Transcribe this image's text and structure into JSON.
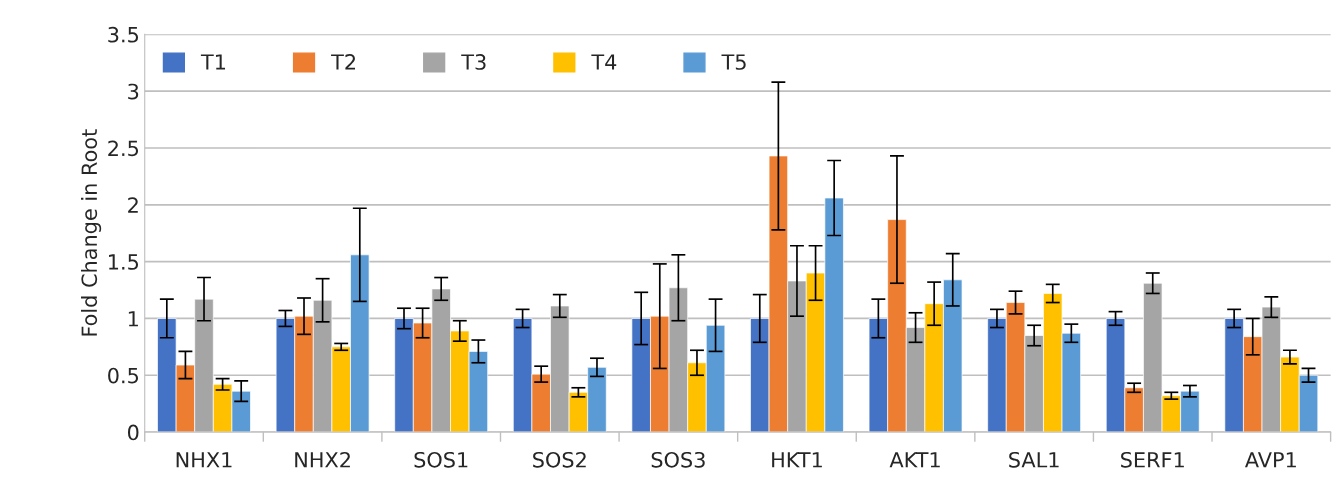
{
  "chart_data": {
    "type": "bar",
    "ylabel": "Fold Change in Root",
    "categories": [
      "NHX1",
      "NHX2",
      "SOS1",
      "SOS2",
      "SOS3",
      "HKT1",
      "AKT1",
      "SAL1",
      "SERF1",
      "AVP1"
    ],
    "series": [
      {
        "name": "T1",
        "color": "#4472c4",
        "values": [
          1.0,
          1.0,
          1.0,
          1.0,
          1.0,
          1.0,
          1.0,
          1.0,
          1.0,
          1.0
        ],
        "errors": [
          0.17,
          0.07,
          0.09,
          0.08,
          0.23,
          0.21,
          0.17,
          0.08,
          0.06,
          0.08
        ]
      },
      {
        "name": "T2",
        "color": "#ed7d31",
        "values": [
          0.59,
          1.02,
          0.96,
          0.51,
          1.02,
          2.43,
          1.87,
          1.14,
          0.39,
          0.84
        ],
        "errors": [
          0.12,
          0.16,
          0.13,
          0.07,
          0.46,
          0.65,
          0.56,
          0.1,
          0.04,
          0.16
        ]
      },
      {
        "name": "T3",
        "color": "#a5a5a5",
        "values": [
          1.17,
          1.16,
          1.26,
          1.11,
          1.27,
          1.33,
          0.92,
          0.85,
          1.31,
          1.1
        ],
        "errors": [
          0.19,
          0.19,
          0.1,
          0.1,
          0.29,
          0.31,
          0.13,
          0.09,
          0.09,
          0.09
        ]
      },
      {
        "name": "T4",
        "color": "#ffc000",
        "values": [
          0.42,
          0.75,
          0.89,
          0.35,
          0.61,
          1.4,
          1.13,
          1.22,
          0.32,
          0.66
        ],
        "errors": [
          0.05,
          0.03,
          0.09,
          0.04,
          0.11,
          0.24,
          0.19,
          0.08,
          0.03,
          0.06
        ]
      },
      {
        "name": "T5",
        "color": "#5b9bd5",
        "values": [
          0.36,
          1.56,
          0.71,
          0.57,
          0.94,
          2.06,
          1.34,
          0.87,
          0.36,
          0.5
        ],
        "errors": [
          0.09,
          0.41,
          0.1,
          0.08,
          0.23,
          0.33,
          0.23,
          0.08,
          0.05,
          0.06
        ]
      }
    ],
    "ylim": [
      0,
      3.5
    ],
    "yticks": [
      0,
      0.5,
      1,
      1.5,
      2,
      2.5,
      3,
      3.5
    ],
    "grid": "y",
    "legend": "top left"
  }
}
